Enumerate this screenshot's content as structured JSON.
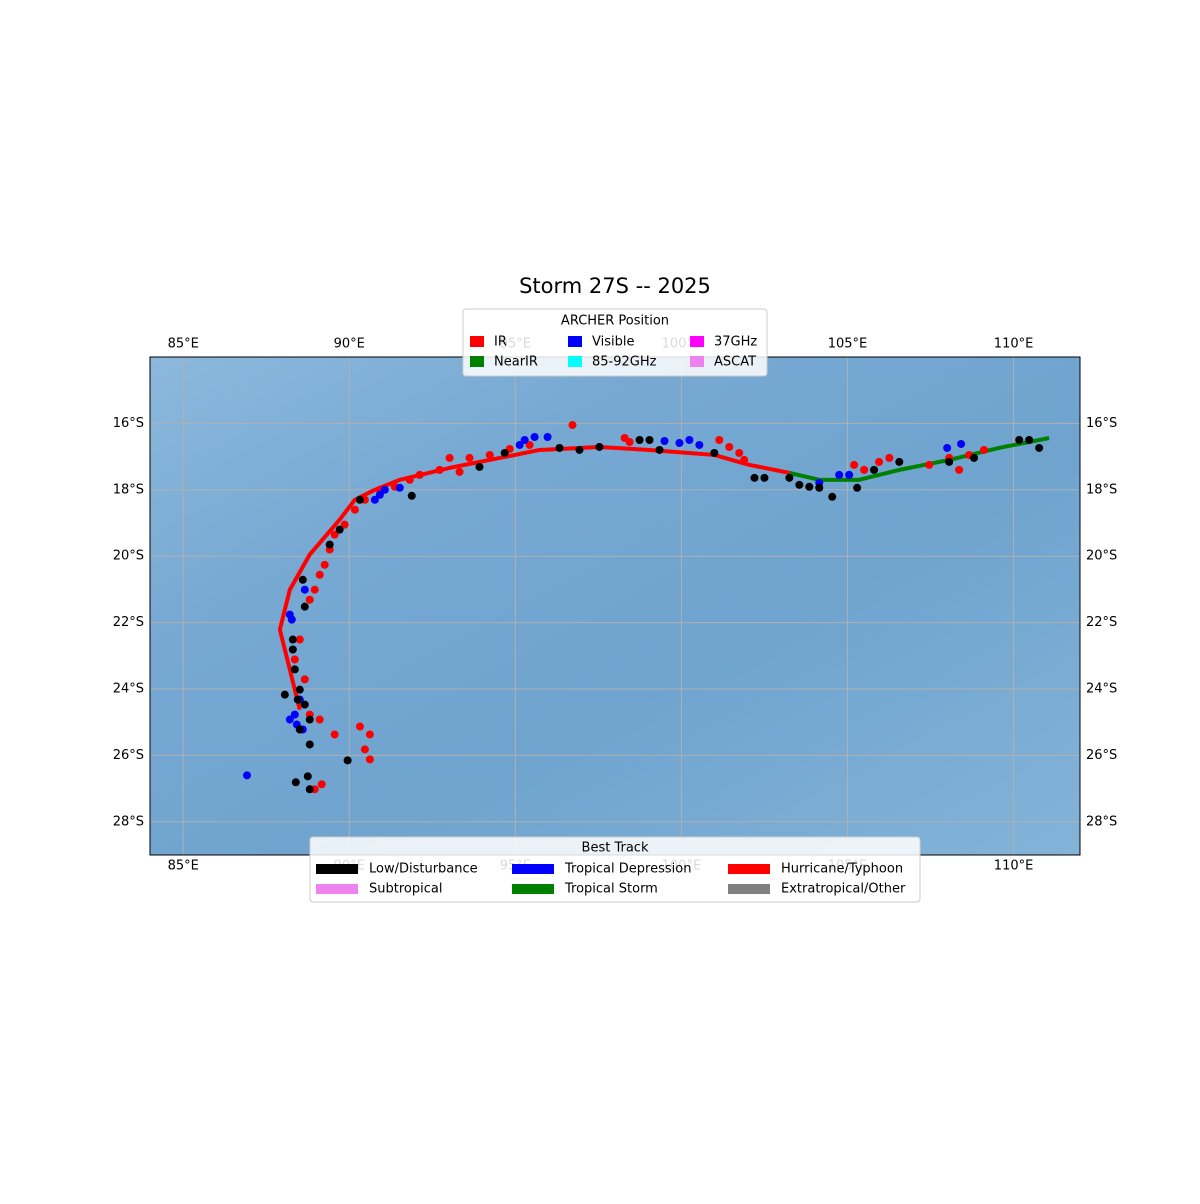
{
  "chart_data": {
    "type": "track-map",
    "title": "Storm 27S -- 2025",
    "xlim": [
      84,
      112
    ],
    "ylim": [
      -29,
      -14
    ],
    "xticks": [
      {
        "value": 85,
        "label": "85°E"
      },
      {
        "value": 90,
        "label": "90°E"
      },
      {
        "value": 95,
        "label": "95°E"
      },
      {
        "value": 100,
        "label": "100°E"
      },
      {
        "value": 105,
        "label": "105°E"
      },
      {
        "value": 110,
        "label": "110°E"
      }
    ],
    "yticks": [
      {
        "value": -16,
        "label": "16°S"
      },
      {
        "value": -18,
        "label": "18°S"
      },
      {
        "value": -20,
        "label": "20°S"
      },
      {
        "value": -22,
        "label": "22°S"
      },
      {
        "value": -24,
        "label": "24°S"
      },
      {
        "value": -26,
        "label": "26°S"
      },
      {
        "value": -28,
        "label": "28°S"
      }
    ],
    "grid": true,
    "best_track": {
      "title": "Best Track",
      "legend": [
        {
          "name": "Low/Disturbance",
          "color": "#000000"
        },
        {
          "name": "Subtropical",
          "color": "#ee82ee"
        },
        {
          "name": "Tropical Depression",
          "color": "#0000ff"
        },
        {
          "name": "Tropical Storm",
          "color": "#008000"
        },
        {
          "name": "Hurricane/Typhoon",
          "color": "#ff0000"
        },
        {
          "name": "Extratropical/Other",
          "color": "#808080"
        }
      ],
      "segments": [
        {
          "color": "#ff0000",
          "lon": [
            88.51,
            87.91,
            88.21,
            88.81,
            89.71,
            90.17,
            90.77,
            91.52,
            93.02,
            94.53,
            95.73,
            97.53,
            99.04,
            100.99,
            102.05,
            103.25
          ],
          "lat": [
            -24.62,
            -22.21,
            -21.01,
            -19.95,
            -18.9,
            -18.3,
            -18.0,
            -17.7,
            -17.34,
            -17.04,
            -16.8,
            -16.71,
            -16.8,
            -16.95,
            -17.25,
            -17.49
          ]
        },
        {
          "color": "#008000",
          "lon": [
            103.25,
            104.15,
            105.35,
            106.56,
            108.06,
            109.56,
            111.07
          ],
          "lat": [
            -17.49,
            -17.7,
            -17.7,
            -17.4,
            -17.1,
            -16.74,
            -16.44
          ]
        }
      ]
    },
    "archer": {
      "title": "ARCHER Position",
      "series": [
        {
          "name": "IR",
          "color": "#ff0000",
          "lon": [
            96.72,
            93.02,
            93.62,
            94.23,
            94.83,
            95.43,
            93.32,
            92.72,
            92.12,
            91.82,
            91.37,
            90.92,
            90.47,
            90.17,
            89.86,
            89.56,
            89.41,
            89.26,
            89.11,
            88.96,
            88.81,
            88.51,
            88.36,
            88.66,
            88.51,
            88.81,
            89.11,
            89.56,
            90.32,
            90.62,
            90.47,
            90.62,
            88.96,
            89.17,
            98.29,
            98.44,
            101.14,
            101.44,
            101.74,
            101.89,
            105.2,
            105.5,
            106.26,
            107.46,
            108.06,
            108.36,
            108.66,
            109.11,
            105.95
          ],
          "lat": [
            -16.05,
            -17.04,
            -17.04,
            -16.95,
            -16.77,
            -16.65,
            -17.46,
            -17.4,
            -17.55,
            -17.7,
            -17.91,
            -18.0,
            -18.3,
            -18.6,
            -19.05,
            -19.35,
            -19.8,
            -20.26,
            -20.56,
            -21.01,
            -21.31,
            -22.51,
            -23.11,
            -23.71,
            -24.32,
            -24.77,
            -24.92,
            -25.37,
            -25.13,
            -25.37,
            -25.82,
            -26.12,
            -27.02,
            -26.87,
            -16.44,
            -16.56,
            -16.5,
            -16.71,
            -16.89,
            -17.1,
            -17.25,
            -17.4,
            -17.04,
            -17.25,
            -17.04,
            -17.4,
            -16.95,
            -16.8,
            -17.16
          ]
        },
        {
          "name": "NearIR",
          "color": "#008000",
          "lon": [],
          "lat": []
        },
        {
          "name": "Visible",
          "color": "#0000ff",
          "lon": [
            95.28,
            95.58,
            95.97,
            95.13,
            99.49,
            99.94,
            100.24,
            100.54,
            90.77,
            90.92,
            91.07,
            91.52,
            88.21,
            88.27,
            88.66,
            88.51,
            88.36,
            88.21,
            88.42,
            88.6,
            86.92,
            104.15,
            104.75,
            105.05,
            108.0,
            108.42
          ],
          "lat": [
            -16.5,
            -16.41,
            -16.41,
            -16.65,
            -16.53,
            -16.59,
            -16.5,
            -16.65,
            -18.3,
            -18.15,
            -18.0,
            -17.94,
            -21.76,
            -21.91,
            -21.01,
            -24.32,
            -24.77,
            -24.92,
            -25.07,
            -25.22,
            -26.6,
            -17.79,
            -17.55,
            -17.55,
            -16.74,
            -16.62
          ]
        },
        {
          "name": "85-92GHz",
          "color": "#00ffff",
          "lon": [],
          "lat": []
        },
        {
          "name": "37GHz",
          "color": "#ff00ff",
          "lon": [],
          "lat": []
        },
        {
          "name": "ASCAT",
          "color": "#ee82ee",
          "lon": [],
          "lat": []
        },
        {
          "color": "#000000",
          "lon": [
            98.74,
            99.04,
            97.53,
            96.93,
            96.33,
            94.68,
            93.92,
            91.88,
            90.32,
            89.71,
            89.41,
            88.66,
            88.6,
            88.3,
            88.36,
            88.3,
            88.51,
            88.45,
            88.66,
            88.81,
            88.51,
            88.81,
            89.95,
            88.39,
            88.75,
            88.81,
            102.2,
            102.5,
            103.25,
            103.55,
            103.85,
            104.15,
            104.54,
            105.29,
            105.8,
            106.56,
            108.06,
            108.81,
            110.17,
            110.47,
            110.77,
            100.99,
            99.34,
            88.06
          ],
          "lat": [
            -16.5,
            -16.5,
            -16.71,
            -16.8,
            -16.74,
            -16.89,
            -17.31,
            -18.18,
            -18.3,
            -19.2,
            -19.65,
            -21.52,
            -20.71,
            -22.51,
            -23.41,
            -22.81,
            -24.02,
            -24.32,
            -24.47,
            -24.92,
            -25.22,
            -25.67,
            -26.15,
            -26.81,
            -26.63,
            -27.02,
            -17.64,
            -17.64,
            -17.64,
            -17.85,
            -17.91,
            -17.94,
            -18.21,
            -17.94,
            -17.4,
            -17.16,
            -17.16,
            -17.04,
            -16.5,
            -16.5,
            -16.74,
            -16.89,
            -16.8,
            -24.17
          ]
        }
      ]
    }
  }
}
